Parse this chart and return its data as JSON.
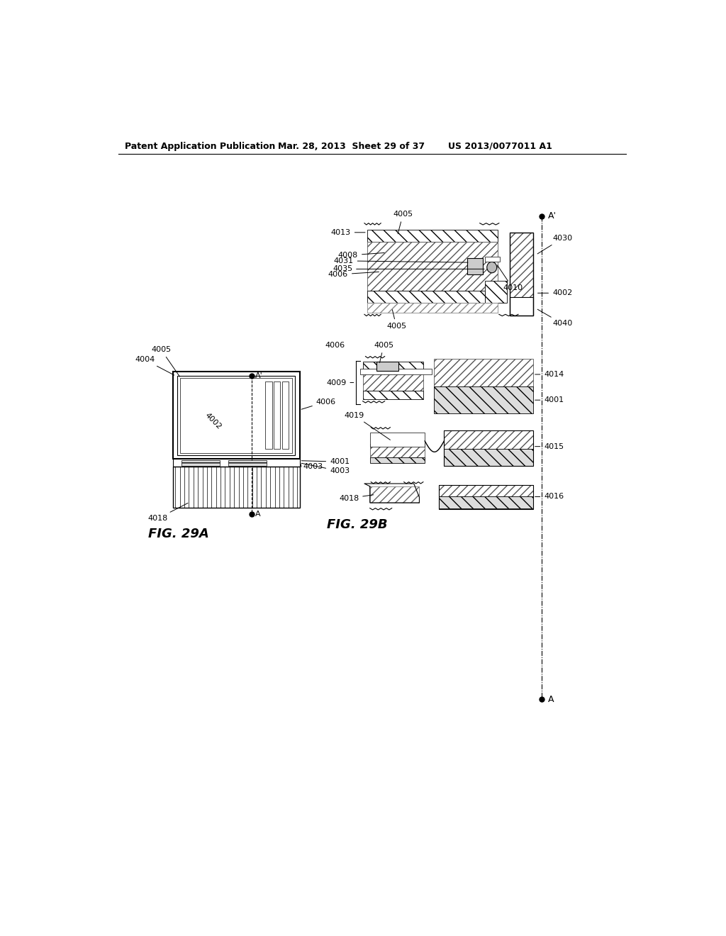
{
  "background_color": "#ffffff",
  "header_left": "Patent Application Publication",
  "header_mid": "Mar. 28, 2013  Sheet 29 of 37",
  "header_right": "US 2013/0077011 A1",
  "fig_label_A": "FIG. 29A",
  "fig_label_B": "FIG. 29B"
}
